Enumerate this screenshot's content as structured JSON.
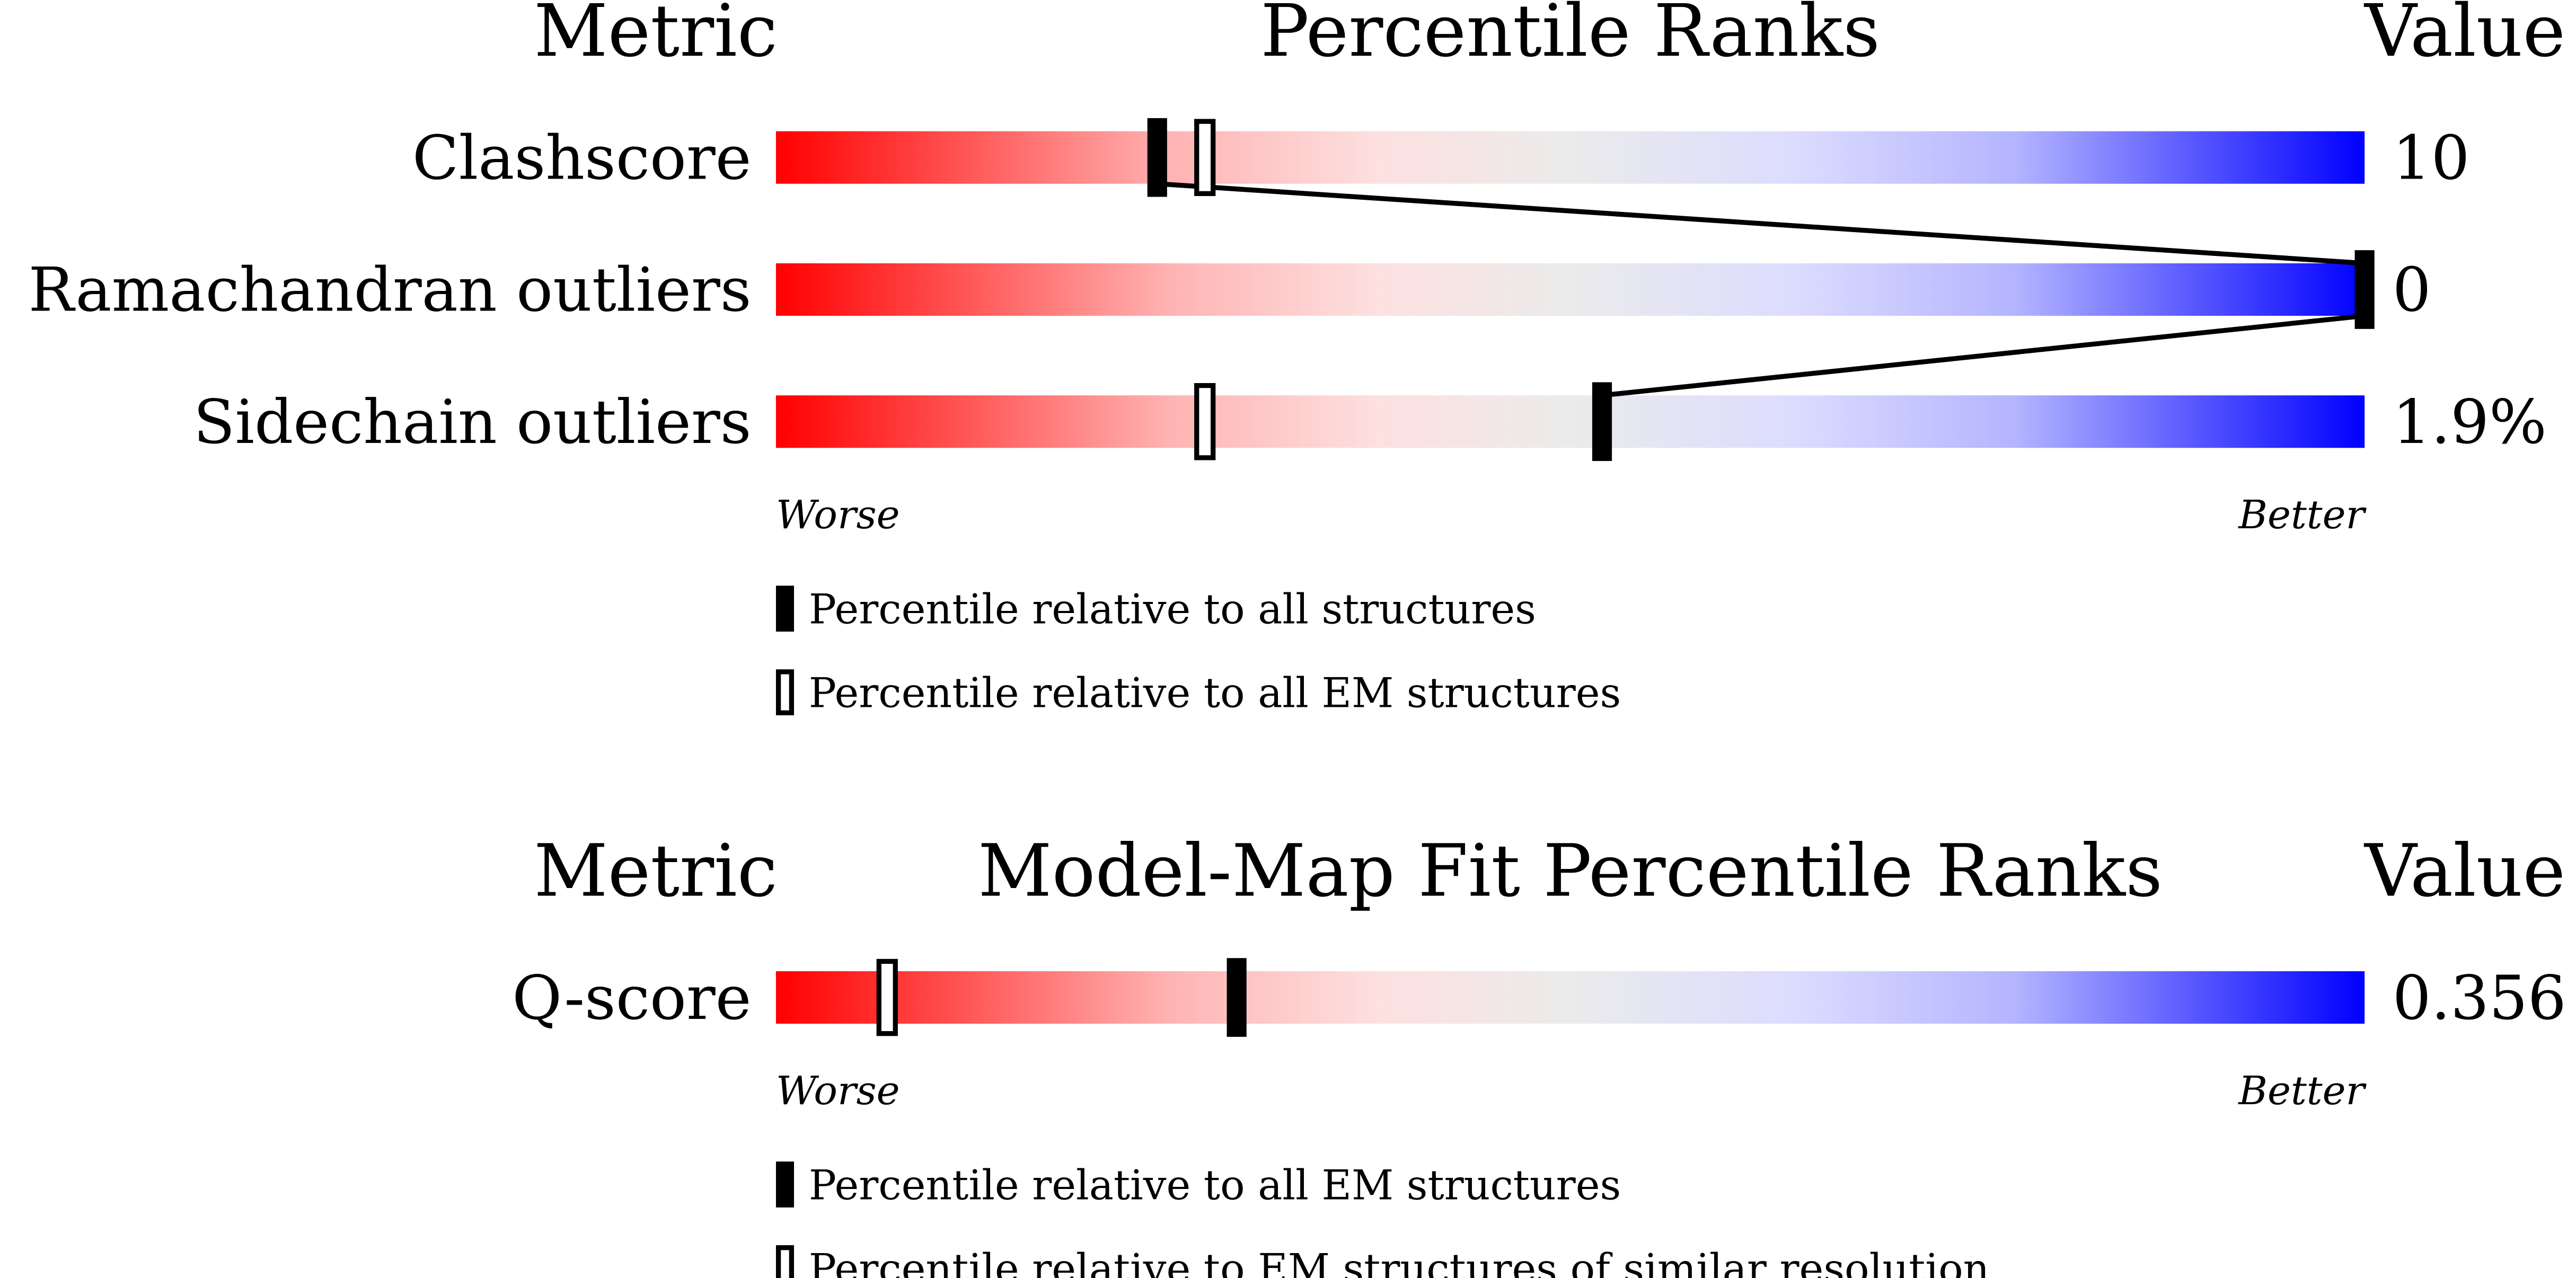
{
  "chart_data": [
    {
      "type": "percentile-slider",
      "headers": {
        "metric": "Metric",
        "title": "Percentile Ranks",
        "value": "Value"
      },
      "categories": [
        "Clashscore",
        "Ramachandran outliers",
        "Sidechain outliers"
      ],
      "value_labels": [
        "10",
        "0",
        "1.9%"
      ],
      "xlim": [
        0,
        100
      ],
      "axis_labels": [
        "Worse",
        "Better"
      ],
      "connect_series": 0,
      "series": [
        {
          "name": "Percentile relative to all structures",
          "style": "filled",
          "color": "#000000",
          "values": [
            24,
            100,
            52
          ]
        },
        {
          "name": "Percentile relative to all EM structures",
          "style": "outline",
          "color": "#000000",
          "values": [
            27,
            null,
            27
          ]
        }
      ]
    },
    {
      "type": "percentile-slider",
      "headers": {
        "metric": "Metric",
        "title": "Model-Map Fit Percentile Ranks",
        "value": "Value"
      },
      "categories": [
        "Q-score"
      ],
      "value_labels": [
        "0.356"
      ],
      "xlim": [
        0,
        100
      ],
      "axis_labels": [
        "Worse",
        "Better"
      ],
      "series": [
        {
          "name": "Percentile relative to all EM structures",
          "style": "filled",
          "color": "#000000",
          "values": [
            29
          ]
        },
        {
          "name": "Percentile relative to EM structures of similar resolution",
          "style": "outline",
          "color": "#000000",
          "values": [
            7
          ]
        }
      ]
    }
  ]
}
